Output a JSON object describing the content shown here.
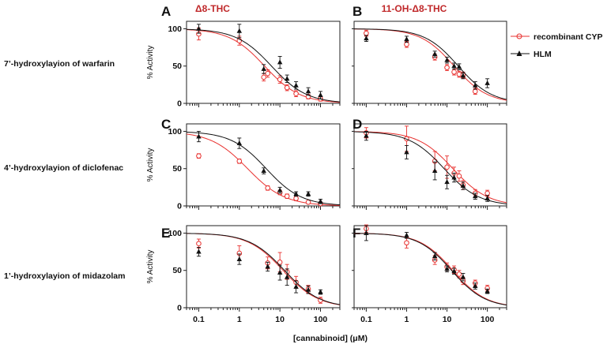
{
  "figure": {
    "column_titles": [
      "Δ8-THC",
      "11-OH-Δ8-THC"
    ],
    "row_labels": [
      "7’-hydroxylayion of warfarin",
      "4’-hydroxylayion of diclofenac",
      "1’-hydroxylayion of midazolam"
    ],
    "xlabel": "[cannabinoid] (μM)",
    "legend": {
      "recombinant": "recombinant CYP",
      "hlm": "HLM",
      "position": "top-right"
    },
    "colors": {
      "recombinant": "#e8312f",
      "hlm": "#111111",
      "title": "#c0282a"
    }
  },
  "chart_data": [
    {
      "panel": "A",
      "type": "scatter",
      "x_scale": "log",
      "xlim": [
        0.05,
        300
      ],
      "ylim": [
        0,
        110
      ],
      "ylabel": "% Activity",
      "yticks": [
        0,
        50,
        100
      ],
      "xticks": [],
      "xtick_labels": [],
      "series": [
        {
          "name": "recombinant CYP",
          "marker": "circle",
          "x": [
            0.1,
            1,
            4,
            5,
            10,
            15,
            25,
            50,
            100
          ],
          "y": [
            93,
            84,
            35,
            40,
            32,
            21,
            13,
            9,
            6
          ],
          "err": [
            8,
            6,
            5,
            5,
            5,
            4,
            4,
            3,
            3
          ],
          "fit": {
            "top": 100,
            "bottom": 0,
            "ic50": 4.2,
            "hill": 1.0
          }
        },
        {
          "name": "HLM",
          "marker": "triangle",
          "x": [
            0.1,
            1,
            4,
            10,
            15,
            25,
            50,
            100
          ],
          "y": [
            100,
            97,
            46,
            55,
            33,
            24,
            16,
            11
          ],
          "err": [
            6,
            9,
            6,
            8,
            5,
            5,
            5,
            5
          ],
          "fit": {
            "top": 100,
            "bottom": 0,
            "ic50": 6.2,
            "hill": 1.0
          }
        }
      ]
    },
    {
      "panel": "B",
      "type": "scatter",
      "x_scale": "log",
      "xlim": [
        0.05,
        300
      ],
      "ylim": [
        0,
        110
      ],
      "ylabel": "",
      "yticks": [],
      "xticks": [],
      "xtick_labels": [],
      "series": [
        {
          "name": "recombinant CYP",
          "marker": "circle",
          "x": [
            0.1,
            1,
            5,
            10,
            15,
            20,
            25,
            50
          ],
          "y": [
            94,
            79,
            62,
            48,
            42,
            39,
            38,
            16
          ],
          "err": [
            4,
            4,
            4,
            4,
            4,
            4,
            4,
            4
          ],
          "fit": {
            "top": 100,
            "bottom": 0,
            "ic50": 15,
            "hill": 1.05
          }
        },
        {
          "name": "HLM",
          "marker": "triangle",
          "x": [
            0.1,
            1,
            5,
            10,
            15,
            20,
            25,
            50,
            100
          ],
          "y": [
            87,
            86,
            66,
            58,
            50,
            49,
            37,
            24,
            27
          ],
          "err": [
            4,
            4,
            4,
            4,
            4,
            4,
            4,
            5,
            6
          ],
          "fit": {
            "top": 100,
            "bottom": 0,
            "ic50": 19,
            "hill": 1.05
          }
        }
      ]
    },
    {
      "panel": "C",
      "type": "scatter",
      "x_scale": "log",
      "xlim": [
        0.05,
        300
      ],
      "ylim": [
        0,
        110
      ],
      "ylabel": "% Activity",
      "yticks": [
        0,
        50,
        100
      ],
      "xticks": [],
      "xtick_labels": [],
      "series": [
        {
          "name": "recombinant CYP",
          "marker": "circle",
          "x": [
            0.1,
            1,
            5,
            10,
            15,
            25,
            50,
            100
          ],
          "y": [
            67,
            60,
            24,
            18,
            13,
            10,
            5,
            3
          ],
          "err": [
            3,
            3,
            3,
            3,
            3,
            3,
            2,
            2
          ],
          "fit": {
            "top": 100,
            "bottom": 0,
            "ic50": 1.6,
            "hill": 0.95
          }
        },
        {
          "name": "HLM",
          "marker": "triangle",
          "x": [
            0.1,
            1,
            4,
            10,
            25,
            50,
            100
          ],
          "y": [
            93,
            84,
            47,
            21,
            16,
            16,
            6
          ],
          "err": [
            7,
            7,
            4,
            4,
            3,
            3,
            3
          ],
          "fit": {
            "top": 100,
            "bottom": 0,
            "ic50": 4.6,
            "hill": 1.0
          }
        }
      ]
    },
    {
      "panel": "D",
      "type": "scatter",
      "x_scale": "log",
      "xlim": [
        0.05,
        300
      ],
      "ylim": [
        0,
        110
      ],
      "ylabel": "",
      "yticks": [],
      "xticks": [],
      "xtick_labels": [],
      "series": [
        {
          "name": "recombinant CYP",
          "marker": "circle",
          "x": [
            0.1,
            1,
            5,
            10,
            15,
            20,
            25,
            50,
            100
          ],
          "y": [
            98,
            90,
            60,
            52,
            44,
            40,
            28,
            17,
            17
          ],
          "err": [
            7,
            17,
            13,
            15,
            8,
            7,
            6,
            5,
            4
          ],
          "fit": {
            "top": 100,
            "bottom": 0,
            "ic50": 14,
            "hill": 1.0
          }
        },
        {
          "name": "HLM",
          "marker": "triangle",
          "x": [
            0.1,
            1,
            5,
            10,
            15,
            25,
            50,
            100
          ],
          "y": [
            94,
            72,
            47,
            32,
            38,
            27,
            13,
            10
          ],
          "err": [
            6,
            9,
            12,
            9,
            6,
            5,
            4,
            4
          ],
          "fit": {
            "top": 100,
            "bottom": 0,
            "ic50": 8.5,
            "hill": 1.0
          }
        }
      ]
    },
    {
      "panel": "E",
      "type": "scatter",
      "x_scale": "log",
      "xlim": [
        0.05,
        300
      ],
      "ylim": [
        0,
        110
      ],
      "ylabel": "% Activity",
      "yticks": [
        0,
        50,
        100
      ],
      "xticks": [
        0.1,
        1,
        10,
        100
      ],
      "xtick_labels": [
        "0.1",
        "1",
        "10",
        "100"
      ],
      "series": [
        {
          "name": "recombinant CYP",
          "marker": "circle",
          "x": [
            0.1,
            1,
            5,
            10,
            15,
            25,
            50,
            100
          ],
          "y": [
            86,
            73,
            60,
            61,
            48,
            34,
            25,
            10
          ],
          "err": [
            6,
            10,
            8,
            13,
            10,
            8,
            5,
            4
          ],
          "fit": {
            "top": 100,
            "bottom": 0,
            "ic50": 12,
            "hill": 1.0
          }
        },
        {
          "name": "HLM",
          "marker": "triangle",
          "x": [
            0.1,
            1,
            5,
            10,
            15,
            25,
            50,
            100
          ],
          "y": [
            75,
            65,
            55,
            47,
            41,
            28,
            24,
            21
          ],
          "err": [
            6,
            7,
            6,
            10,
            11,
            8,
            5,
            3
          ],
          "fit": {
            "top": 100,
            "bottom": 0,
            "ic50": 13,
            "hill": 1.0
          }
        }
      ]
    },
    {
      "panel": "F",
      "type": "scatter",
      "x_scale": "log",
      "xlim": [
        0.05,
        300
      ],
      "ylim": [
        0,
        110
      ],
      "ylabel": "",
      "yticks": [],
      "xticks": [
        0.1,
        1,
        10,
        100
      ],
      "xtick_labels": [
        "0.1",
        "1",
        "10",
        "100"
      ],
      "series": [
        {
          "name": "recombinant CYP",
          "marker": "circle",
          "x": [
            0.1,
            1,
            5,
            10,
            15,
            20,
            25,
            50,
            100
          ],
          "y": [
            106,
            87,
            64,
            55,
            51,
            45,
            36,
            33,
            26
          ],
          "err": [
            5,
            7,
            6,
            5,
            5,
            5,
            5,
            4,
            4
          ],
          "fit": {
            "top": 100,
            "bottom": 0,
            "ic50": 14,
            "hill": 1.05
          }
        },
        {
          "name": "HLM",
          "marker": "triangle",
          "x": [
            0.1,
            1,
            5,
            10,
            15,
            25,
            50,
            100
          ],
          "y": [
            100,
            97,
            69,
            52,
            49,
            41,
            29,
            22
          ],
          "err": [
            10,
            4,
            5,
            4,
            4,
            5,
            4,
            3
          ],
          "fit": {
            "top": 100,
            "bottom": 0,
            "ic50": 13,
            "hill": 1.05
          }
        }
      ]
    }
  ]
}
